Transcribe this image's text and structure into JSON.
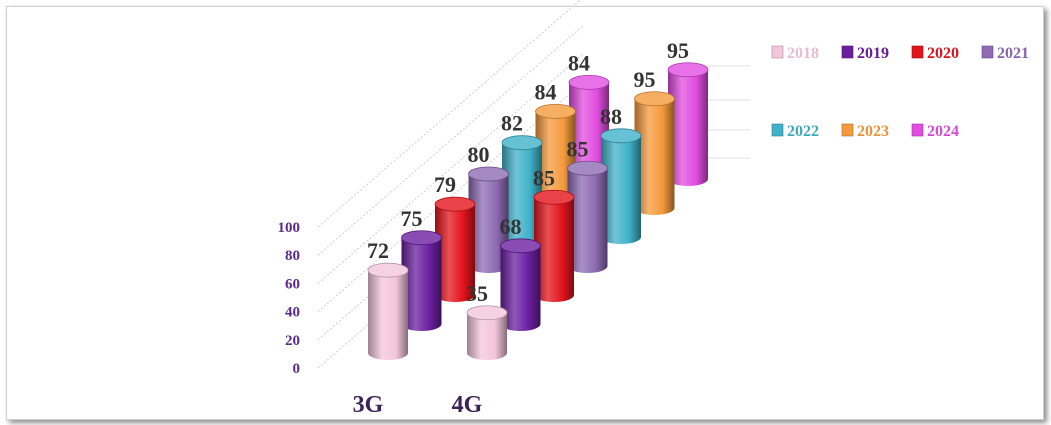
{
  "chart_data": {
    "type": "bar",
    "subtype": "3d-cylinder",
    "title": "",
    "xlabel": "",
    "ylabel": "",
    "ylim": [
      0,
      100
    ],
    "yticks": [
      "0",
      "20",
      "40",
      "60",
      "80",
      "100"
    ],
    "categories": [
      "3G",
      "4G"
    ],
    "series": [
      {
        "name": "2018",
        "color": "#f3c6dc",
        "values": [
          72,
          35
        ]
      },
      {
        "name": "2019",
        "color": "#6a1fa0",
        "values": [
          75,
          68
        ]
      },
      {
        "name": "2020",
        "color": "#e3141c",
        "values": [
          79,
          85
        ]
      },
      {
        "name": "2021",
        "color": "#8e6bb4",
        "values": [
          80,
          85
        ]
      },
      {
        "name": "2022",
        "color": "#3fb2c8",
        "values": [
          82,
          88
        ]
      },
      {
        "name": "2023",
        "color": "#f49a3c",
        "values": [
          84,
          95
        ]
      },
      {
        "name": "2024",
        "color": "#e14de0",
        "values": [
          84,
          95
        ]
      }
    ],
    "colors": {
      "axis_text": "#5b2a8c",
      "label_text": "#333333"
    },
    "legend": {
      "position": "top-right",
      "rows": [
        [
          "2018",
          "2019",
          "2020",
          "2021"
        ],
        [
          "2022",
          "2023",
          "2024"
        ]
      ]
    }
  }
}
